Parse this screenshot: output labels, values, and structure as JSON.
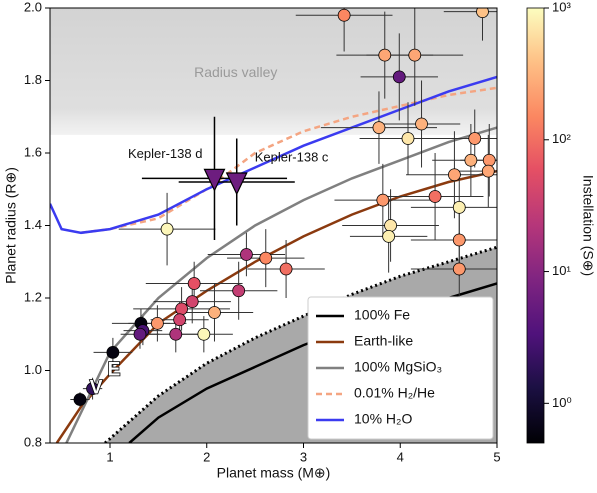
{
  "chart_data": {
    "type": "scatter",
    "xlabel": "Planet mass (M⊕)",
    "ylabel": "Planet radius (R⊕)",
    "xlim": [
      0.38,
      5
    ],
    "ylim": [
      0.8,
      2.0
    ],
    "xticks": [
      1,
      2,
      3,
      4,
      5
    ],
    "yticks": [
      0.8,
      {
        "value": 1.0,
        "label": "1.0"
      },
      1.2,
      1.4,
      1.6,
      1.8,
      {
        "value": 2.0,
        "label": "2.0"
      }
    ],
    "colorbar": {
      "label": "Instellation (S⊕)",
      "scale": "log",
      "colormap": "magma",
      "lim": [
        0.5,
        1000
      ],
      "ticks": [
        {
          "value": 1,
          "label": "10⁰"
        },
        {
          "value": 10,
          "label": "10¹"
        },
        {
          "value": 100,
          "label": "10²"
        },
        {
          "value": 1000,
          "label": "10³"
        }
      ]
    },
    "shaded_band": {
      "label": "Radius valley",
      "ylim": [
        1.65,
        2.0
      ],
      "color": "#d9d9d9"
    },
    "legend": "lower right",
    "curves": [
      {
        "name": "100% Fe",
        "color": "#000000",
        "style": "solid",
        "x": [
          1.2,
          1.5,
          2,
          2.5,
          3,
          3.5,
          4,
          4.5,
          5
        ],
        "y": [
          0.8,
          0.87,
          0.95,
          1.01,
          1.07,
          1.12,
          1.16,
          1.2,
          1.24
        ]
      },
      {
        "name": "Earth-like",
        "color": "#8b3a0f",
        "style": "solid",
        "x": [
          0.45,
          0.7,
          1,
          1.5,
          2,
          2.5,
          3,
          3.5,
          4,
          4.5,
          5
        ],
        "y": [
          0.8,
          0.9,
          0.99,
          1.13,
          1.22,
          1.3,
          1.37,
          1.43,
          1.48,
          1.52,
          1.55
        ]
      },
      {
        "name": "100% MgSiO₃",
        "color": "#808080",
        "style": "solid",
        "x": [
          0.55,
          1,
          1.5,
          2,
          2.5,
          3,
          3.5,
          4,
          4.5,
          5
        ],
        "y": [
          0.8,
          1.05,
          1.2,
          1.31,
          1.4,
          1.47,
          1.53,
          1.58,
          1.63,
          1.67
        ]
      },
      {
        "name": "0.01% H₂/He",
        "color": "#f4a582",
        "style": "dashed",
        "x": [
          0.7,
          1,
          1.5,
          2,
          2.5,
          3,
          3.5,
          4,
          4.5,
          5
        ],
        "y": [
          1.38,
          1.39,
          1.42,
          1.5,
          1.6,
          1.66,
          1.7,
          1.73,
          1.76,
          1.78
        ]
      },
      {
        "name": "10% H₂O",
        "color": "#3b3bf0",
        "style": "solid",
        "x": [
          0.38,
          0.5,
          0.7,
          1,
          1.5,
          2,
          2.5,
          3,
          3.5,
          4,
          4.5,
          5
        ],
        "y": [
          1.46,
          1.39,
          1.38,
          1.39,
          1.43,
          1.5,
          1.56,
          1.62,
          1.67,
          1.72,
          1.77,
          1.81
        ]
      },
      {
        "color": "#000000",
        "style": "dotted",
        "fill_below": "#a9a9a9",
        "x": [
          0.95,
          1.5,
          2,
          2.5,
          3,
          3.5,
          4,
          4.5,
          5
        ],
        "y": [
          0.8,
          0.93,
          1.02,
          1.09,
          1.15,
          1.21,
          1.26,
          1.3,
          1.34
        ]
      }
    ],
    "points": {
      "x": [
        3.42,
        4.85,
        3.84,
        4.15,
        3.99,
        3.78,
        4.08,
        4.22,
        4.77,
        4.73,
        4.56,
        4.92,
        4.91,
        4.36,
        3.82,
        4.61,
        3.9,
        3.88,
        4.61,
        4.61,
        1.59,
        2.41,
        2.61,
        2.82,
        1.87,
        2.33,
        1.85,
        1.74,
        2.08,
        1.49,
        1.72,
        1.32,
        1.34,
        1.31,
        1.68,
        1.97,
        1.03,
        0.82,
        0.69
      ],
      "y": [
        1.98,
        1.99,
        1.87,
        1.87,
        1.81,
        1.67,
        1.64,
        1.68,
        1.64,
        1.58,
        1.54,
        1.58,
        1.55,
        1.48,
        1.47,
        1.45,
        1.4,
        1.37,
        1.36,
        1.28,
        1.39,
        1.32,
        1.31,
        1.28,
        1.24,
        1.22,
        1.19,
        1.17,
        1.16,
        1.13,
        1.14,
        1.13,
        1.11,
        1.1,
        1.1,
        1.1,
        1.05,
        0.95,
        0.92
      ],
      "xerr": [
        0.5,
        0.4,
        0.5,
        0.5,
        0.4,
        0.6,
        0.5,
        0.4,
        0.5,
        0.4,
        0.5,
        0.3,
        0.4,
        0.5,
        0.5,
        0.5,
        0.5,
        0.4,
        0.5,
        0.5,
        0.5,
        0.4,
        0.4,
        0.4,
        0.5,
        0.4,
        0.4,
        0.5,
        0.4,
        0.3,
        0.3,
        0.3,
        0.2,
        0.2,
        0.3,
        0.3,
        0.2,
        0.1,
        0.1
      ],
      "yerr": [
        0.1,
        0.08,
        0.12,
        0.14,
        0.12,
        0.1,
        0.1,
        0.12,
        0.08,
        0.1,
        0.12,
        0.1,
        0.1,
        0.12,
        0.1,
        0.1,
        0.1,
        0.1,
        0.1,
        0.1,
        0.1,
        0.06,
        0.08,
        0.08,
        0.06,
        0.08,
        0.06,
        0.06,
        0.08,
        0.05,
        0.05,
        0.04,
        0.04,
        0.04,
        0.05,
        0.05,
        0.04,
        0.03,
        0.02
      ],
      "insolation": [
        150,
        400,
        250,
        250,
        5,
        300,
        700,
        300,
        200,
        300,
        250,
        200,
        250,
        100,
        200,
        800,
        700,
        800,
        200,
        200,
        900,
        20,
        150,
        100,
        60,
        30,
        40,
        50,
        300,
        200,
        40,
        0.6,
        3,
        5,
        20,
        900,
        0.6,
        2,
        0.6
      ]
    },
    "highlighted": [
      {
        "label": "Kepler-138 d",
        "x": 2.08,
        "y": 1.53,
        "xerr": 0.75,
        "yerr": 0.17,
        "insolation": 6
      },
      {
        "label": "Kepler-138 c",
        "x": 2.31,
        "y": 1.52,
        "xerr": 0.6,
        "yerr": 0.12,
        "insolation": 6
      }
    ],
    "solar_system": [
      {
        "label": "V",
        "x": 0.815,
        "y": 0.95
      },
      {
        "label": "E",
        "x": 1,
        "y": 1
      }
    ]
  }
}
